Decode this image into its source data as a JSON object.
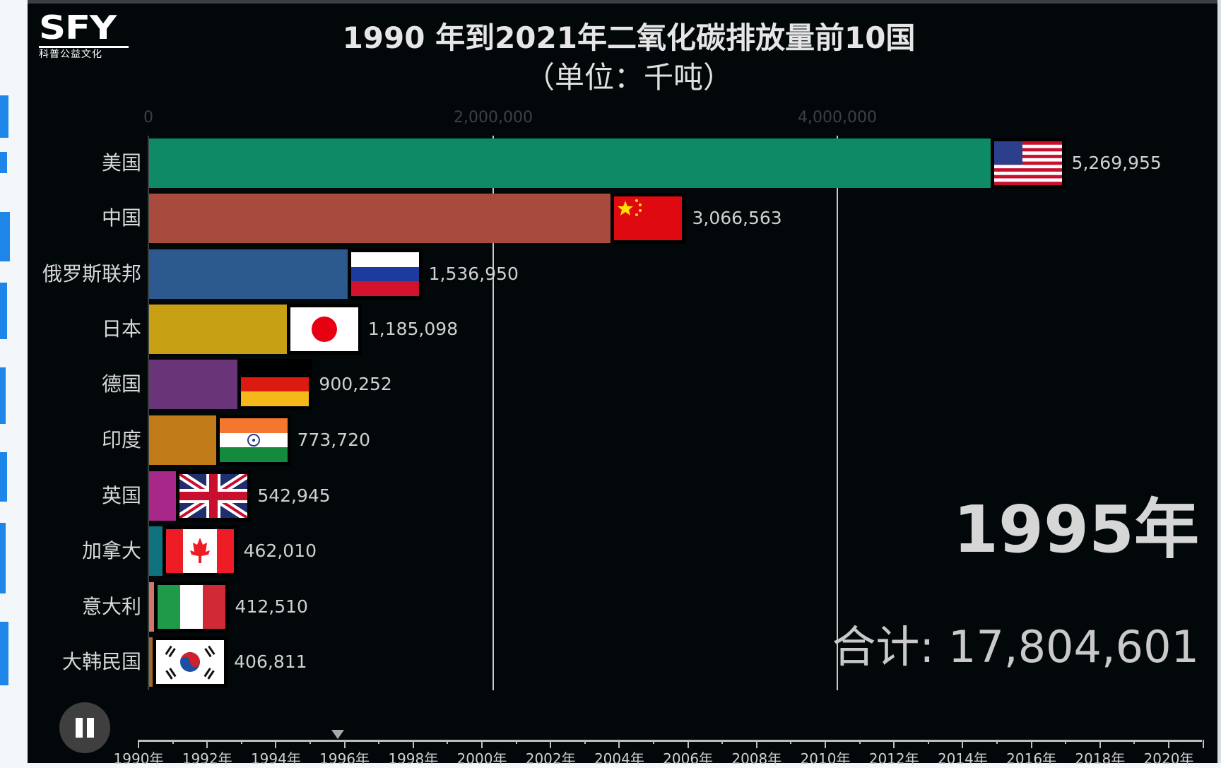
{
  "logo": {
    "brand": "SFY",
    "tagline": "科普公益文化"
  },
  "chart_data": {
    "type": "bar",
    "orientation": "horizontal",
    "title": "1990 年到2021年二氧化碳排放量前10国",
    "subtitle": "（单位：千吨）",
    "unit": "千吨",
    "year": "1995年",
    "total_label": "合计:",
    "total_value": "17,804,601",
    "x_ticks": [
      "0",
      "2,000,000",
      "4,000,000"
    ],
    "xlim": [
      0,
      5300000
    ],
    "grid": true,
    "categories": [
      "美国",
      "中国",
      "俄罗斯联邦",
      "日本",
      "德国",
      "印度",
      "英国",
      "加拿大",
      "意大利",
      "大韩民国"
    ],
    "values": [
      5269955,
      3066563,
      1536950,
      1185098,
      900252,
      773720,
      542945,
      462010,
      412510,
      406811
    ],
    "value_labels": [
      "5,269,955",
      "3,066,563",
      "1,536,950",
      "1,185,098",
      "900,252",
      "773,720",
      "542,945",
      "462,010",
      "412,510",
      "406,811"
    ],
    "colors": [
      "#0e8a66",
      "#a84a3c",
      "#2d5a8e",
      "#c8a014",
      "#6a3478",
      "#c07a18",
      "#a8288a",
      "#0f727c",
      "#d0766a",
      "#a06a2c"
    ],
    "flags": [
      "us-flag-icon",
      "cn-flag-icon",
      "ru-flag-icon",
      "jp-flag-icon",
      "de-flag-icon",
      "in-flag-icon",
      "gb-flag-icon",
      "ca-flag-icon",
      "it-flag-icon",
      "kr-flag-icon"
    ]
  },
  "timeline": {
    "labels": [
      "1990年",
      "1992年",
      "1994年",
      "1996年",
      "1998年",
      "2000年",
      "2002年",
      "2004年",
      "2006年",
      "2008年",
      "2010年",
      "2012年",
      "2014年",
      "2016年",
      "2018年",
      "2020年"
    ],
    "start_year": 1990,
    "end_year": 2021,
    "current_position": 1995.8
  },
  "controls": {
    "play_state": "playing",
    "button_icon": "pause-icon"
  }
}
